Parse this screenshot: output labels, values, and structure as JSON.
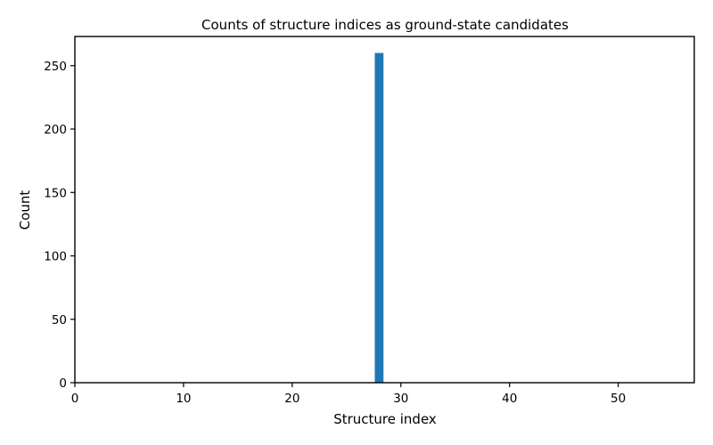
{
  "chart_data": {
    "type": "bar",
    "title": "Counts of structure indices as ground-state candidates",
    "xlabel": "Structure index",
    "ylabel": "Count",
    "xlim": [
      0,
      57
    ],
    "ylim": [
      0,
      273
    ],
    "xticks": [
      0,
      10,
      20,
      30,
      40,
      50
    ],
    "yticks": [
      0,
      50,
      100,
      150,
      200,
      250
    ],
    "grid": false,
    "legend": "none",
    "bar_width": 0.8,
    "bars": [
      {
        "x": 28,
        "value": 260
      }
    ],
    "colors": {
      "bar": "#1f77b4",
      "axes": "#000000"
    }
  }
}
